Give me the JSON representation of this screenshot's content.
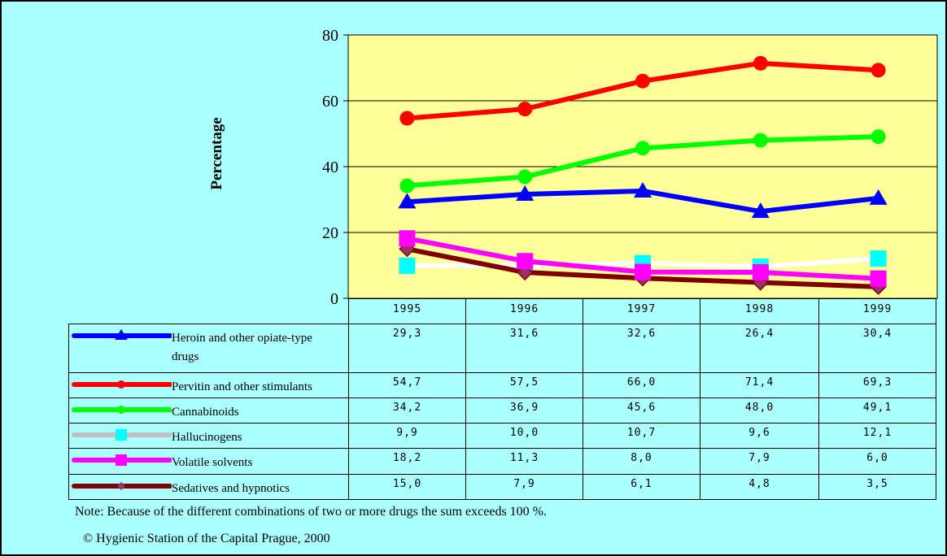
{
  "chart_data": {
    "type": "line",
    "x": [
      "1995",
      "1996",
      "1997",
      "1998",
      "1999"
    ],
    "ylabel": "Percentage",
    "ylim": [
      0,
      80
    ],
    "yticks": [
      "0",
      "20",
      "40",
      "60",
      "80"
    ],
    "grid": true,
    "legend": "table-bottom-left",
    "plot_background": "#ffff99",
    "series": [
      {
        "name": "Heroin and other opiate-type drugs",
        "color": "#0000ff",
        "marker": "triangle",
        "values": [
          29.3,
          31.6,
          32.6,
          26.4,
          30.4
        ],
        "labels": [
          "29,3",
          "31,6",
          "32,6",
          "26,4",
          "30,4"
        ]
      },
      {
        "name": "Pervitin and other stimulants",
        "color": "#ff0000",
        "marker": "circle",
        "values": [
          54.7,
          57.5,
          66.0,
          71.4,
          69.3
        ],
        "labels": [
          "54,7",
          "57,5",
          "66,0",
          "71,4",
          "69,3"
        ]
      },
      {
        "name": "Cannabinoids",
        "color": "#00ff00",
        "marker": "circle",
        "values": [
          34.2,
          36.9,
          45.6,
          48.0,
          49.1
        ],
        "labels": [
          "34,2",
          "36,9",
          "45,6",
          "48,0",
          "49,1"
        ]
      },
      {
        "name": "Hallucinogens",
        "color": "#ffffff",
        "legend_color": "#c0c0c0",
        "marker_color": "#00ffff",
        "marker": "square",
        "values": [
          9.9,
          10.0,
          10.7,
          9.6,
          12.1
        ],
        "labels": [
          "9,9",
          "10,0",
          "10,7",
          "9,6",
          "12,1"
        ]
      },
      {
        "name": "Volatile solvents",
        "color": "#ff00ff",
        "marker": "square",
        "values": [
          18.2,
          11.3,
          8.0,
          7.9,
          6.0
        ],
        "labels": [
          "18,2",
          "11,3",
          "8,0",
          "7,9",
          "6,0"
        ]
      },
      {
        "name": "Sedatives and hypnotics",
        "color": "#800000",
        "marker_color": "#993366",
        "marker": "diamond",
        "values": [
          15.0,
          7.9,
          6.1,
          4.8,
          3.5
        ],
        "labels": [
          "15,0",
          "7,9",
          "6,1",
          "4,8",
          "3,5"
        ]
      }
    ]
  },
  "notes": {
    "note": "Note: Because of the different combinations of two or more drugs the sum exceeds 100 %.",
    "copyright": "© Hygienic Station of the Capital Prague, 2000"
  }
}
